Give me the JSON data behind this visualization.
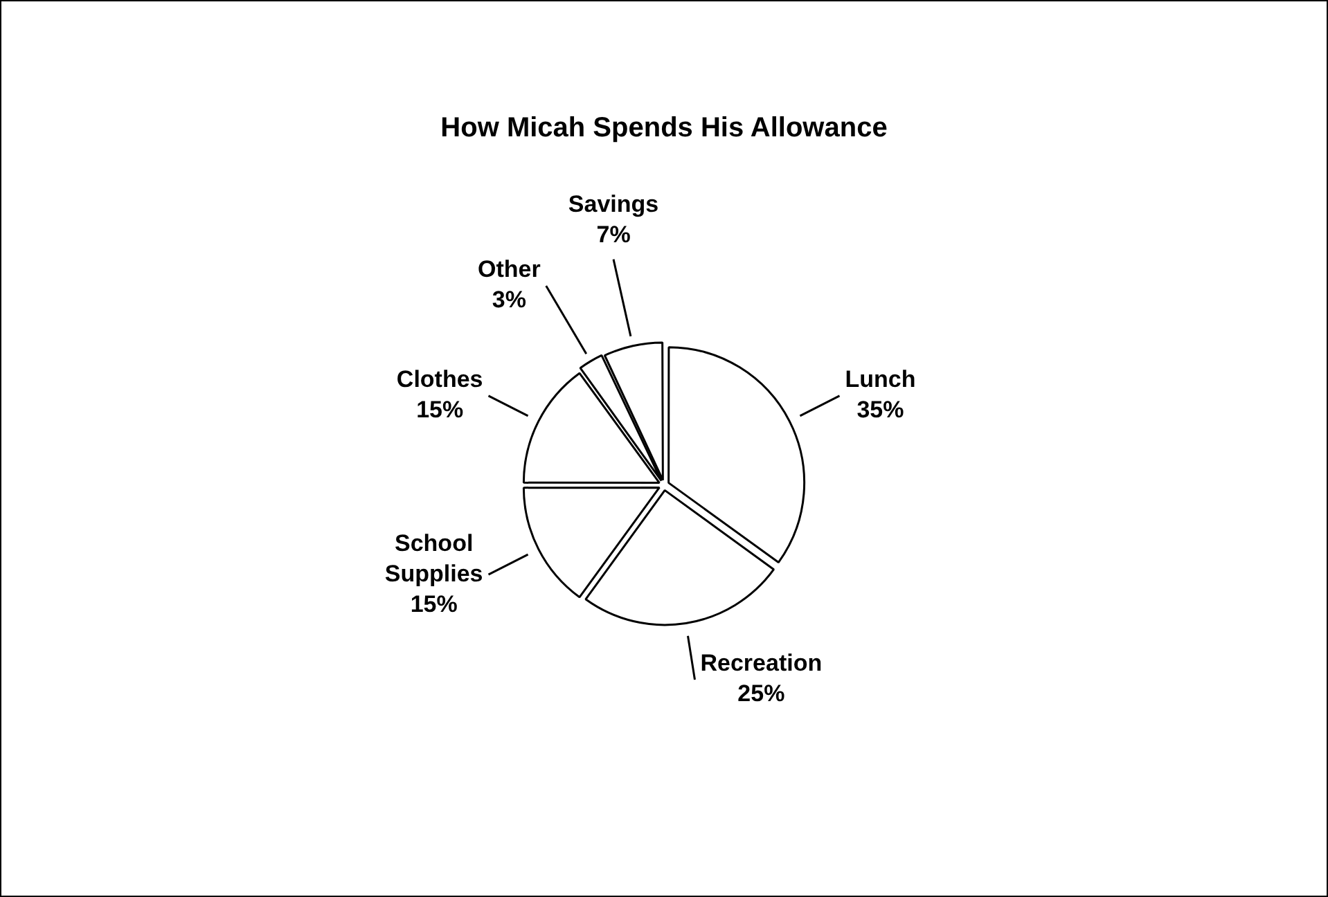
{
  "chart_data": {
    "type": "pie",
    "title": "How Micah Spends His Allowance",
    "categories": [
      "Lunch",
      "Recreation",
      "School Supplies",
      "Clothes",
      "Other",
      "Savings"
    ],
    "values": [
      35,
      25,
      15,
      15,
      3,
      7
    ],
    "value_labels": [
      "35%",
      "25%",
      "15%",
      "15%",
      "3%",
      "7%"
    ],
    "colors": [
      "#ffffff",
      "#ffffff",
      "#ffffff",
      "#ffffff",
      "#ffffff",
      "#ffffff"
    ]
  }
}
